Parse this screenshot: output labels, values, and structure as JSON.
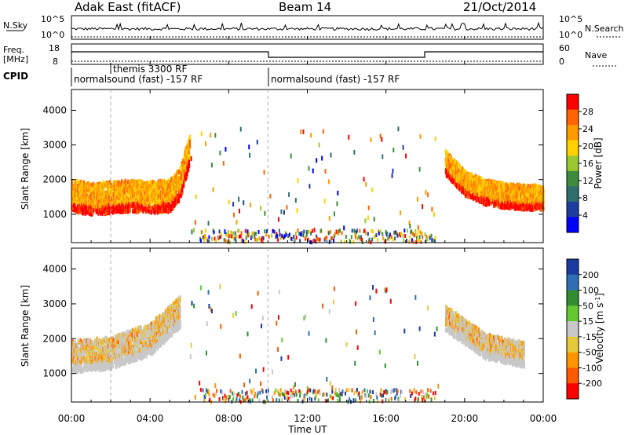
{
  "header": {
    "station": "Adak East (fitACF)",
    "beam": "Beam 14",
    "date": "21/Oct/2014"
  },
  "info_panels": {
    "nsky_label": "N.Sky",
    "nsky_ticks": [
      "10^5",
      "10^0"
    ],
    "nsearch_label": "N.Search",
    "nsearch_ticks": [
      "10^5",
      "10^0"
    ],
    "freq_label": "Freq.",
    "freq_unit": "[MHz]",
    "freq_ticks": [
      "18",
      "8"
    ],
    "nave_label": "Nave",
    "nave_ticks": [
      "60",
      "0"
    ],
    "cpid_label": "CPID",
    "cpid_segments": [
      {
        "label": "normalsound (fast) -157 RF",
        "start_h": 0,
        "end_h": 10
      },
      {
        "label": "themis 3300 RF",
        "start_h": 2,
        "end_h": 2
      },
      {
        "label": "normalsound (fast) -157 RF",
        "start_h": 10,
        "end_h": 24
      }
    ]
  },
  "axes": {
    "ylabel": "Slant Range [km]",
    "xlabel": "Time UT",
    "x_ticks": [
      "00:00",
      "04:00",
      "08:00",
      "12:00",
      "16:00",
      "20:00",
      "00:00"
    ],
    "x_tick_hours": [
      0,
      4,
      8,
      12,
      16,
      20,
      24
    ],
    "y_ticks": [
      "1000",
      "2000",
      "3000",
      "4000"
    ],
    "y_tick_values": [
      1000,
      2000,
      3000,
      4000
    ],
    "x_range_hours": [
      0,
      24
    ],
    "y_range_km": [
      180,
      4600
    ],
    "cpid_change_hours": [
      2,
      10
    ]
  },
  "colorbars": {
    "power": {
      "label": "Power [dB]",
      "ticks": [
        "28",
        "24",
        "20",
        "16",
        "12",
        "8",
        "4"
      ],
      "colors": [
        "#ff0000",
        "#ff6400",
        "#ff9b00",
        "#ffd200",
        "#9bc832",
        "#3c8c3c",
        "#2d6e6e",
        "#1e3ca0",
        "#0000ff"
      ]
    },
    "velocity": {
      "label": "Velocity [m s",
      "label_sup": "-1",
      "label_end": "]",
      "ticks": [
        "200",
        "100",
        "50",
        "15",
        "-15",
        "-50",
        "-100",
        "-200"
      ],
      "colors": [
        "#1a3aa0",
        "#2d6eb4",
        "#328c32",
        "#64c832",
        "#c8c8c8",
        "#e6c83c",
        "#ff9600",
        "#ff5a00",
        "#ff0000"
      ]
    }
  },
  "chart_data": [
    {
      "type": "heatmap",
      "title": "Power",
      "xlabel": "Time UT",
      "ylabel": "Slant Range [km]",
      "xlim": [
        0,
        24
      ],
      "ylim": [
        180,
        4600
      ],
      "color_scale": {
        "label": "Power [dB]",
        "range": [
          0,
          32
        ]
      },
      "echo_bands": [
        {
          "t": 0.0,
          "range": 1150,
          "power": 31
        },
        {
          "t": 0.5,
          "range": 1100,
          "power": 30
        },
        {
          "t": 1.0,
          "range": 1050,
          "power": 29
        },
        {
          "t": 2.0,
          "range": 1100,
          "power": 30
        },
        {
          "t": 3.0,
          "range": 1150,
          "power": 31
        },
        {
          "t": 4.0,
          "range": 1100,
          "power": 30
        },
        {
          "t": 5.0,
          "range": 1150,
          "power": 28
        },
        {
          "t": 5.5,
          "range": 1500,
          "power": 26
        },
        {
          "t": 6.0,
          "range": 2500,
          "power": 18
        },
        {
          "t": 19.0,
          "range": 2200,
          "power": 22
        },
        {
          "t": 20.0,
          "range": 1600,
          "power": 27
        },
        {
          "t": 21.0,
          "range": 1350,
          "power": 30
        },
        {
          "t": 22.0,
          "range": 1250,
          "power": 31
        },
        {
          "t": 23.0,
          "range": 1200,
          "power": 31
        },
        {
          "t": 24.0,
          "range": 1200,
          "power": 31
        }
      ]
    },
    {
      "type": "heatmap",
      "title": "Velocity",
      "xlabel": "Time UT",
      "ylabel": "Slant Range [km]",
      "xlim": [
        0,
        24
      ],
      "ylim": [
        180,
        4600
      ],
      "color_scale": {
        "label": "Velocity [m s-1]",
        "range": [
          -250,
          250
        ]
      },
      "echo_bands": [
        {
          "t": 0.0,
          "range": 1100,
          "velocity": 0
        },
        {
          "t": 2.0,
          "range": 1200,
          "velocity": -10
        },
        {
          "t": 4.0,
          "range": 1600,
          "velocity": -40
        },
        {
          "t": 5.5,
          "range": 2400,
          "velocity": -20
        },
        {
          "t": 19.0,
          "range": 2300,
          "velocity": 20
        },
        {
          "t": 21.0,
          "range": 1500,
          "velocity": 0
        },
        {
          "t": 23.0,
          "range": 1250,
          "velocity": -5
        }
      ]
    }
  ]
}
